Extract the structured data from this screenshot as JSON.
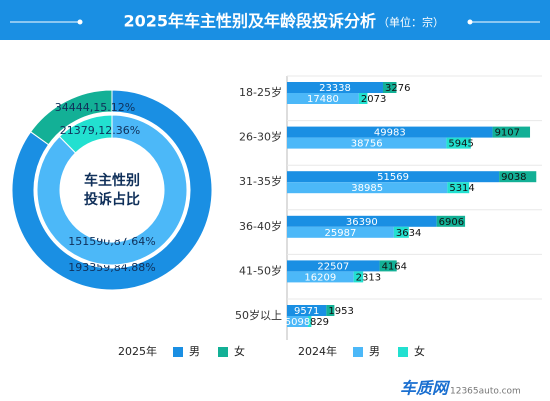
{
  "title": "2025年车主性别及年龄段投诉分析",
  "unit": "（单位：宗）",
  "watermark": "车质网",
  "watermark_url": "12365auto.com",
  "chart_data": [
    {
      "type": "pie",
      "center_label": [
        "车主性别",
        "投诉占比"
      ],
      "categories": [
        "男",
        "女"
      ],
      "series": [
        {
          "name": "2025年",
          "colors": [
            "#1a8fe3",
            "#13b096"
          ],
          "values": [
            193359,
            34444
          ],
          "value_labels": [
            "193359,84.88%",
            "34444,15.12%"
          ]
        },
        {
          "name": "2024年",
          "colors": [
            "#4cb8f8",
            "#22e0d0"
          ],
          "values": [
            151590,
            21379
          ],
          "value_labels": [
            "151590,87.64%",
            "21379,12.36%"
          ]
        }
      ]
    },
    {
      "type": "bar",
      "orientation": "horizontal",
      "stacked": true,
      "categories": [
        "18-25岁",
        "26-30岁",
        "31-35岁",
        "36-40岁",
        "41-50岁",
        "50岁以上"
      ],
      "xlim": [
        0,
        62000
      ],
      "series": [
        {
          "name": "男",
          "group": "2025年",
          "color": "#1a8fe3",
          "values": [
            23338,
            49983,
            51569,
            36390,
            22507,
            9571
          ]
        },
        {
          "name": "女",
          "group": "2025年",
          "color": "#13b096",
          "values": [
            3276,
            9107,
            9038,
            6906,
            4164,
            1953
          ]
        },
        {
          "name": "男",
          "group": "2024年",
          "color": "#4cb8f8",
          "values": [
            17480,
            38756,
            38985,
            25987,
            16209,
            5098
          ]
        },
        {
          "name": "女",
          "group": "2024年",
          "color": "#22e0d0",
          "values": [
            2073,
            5945,
            5314,
            3634,
            2313,
            829
          ]
        }
      ]
    }
  ]
}
